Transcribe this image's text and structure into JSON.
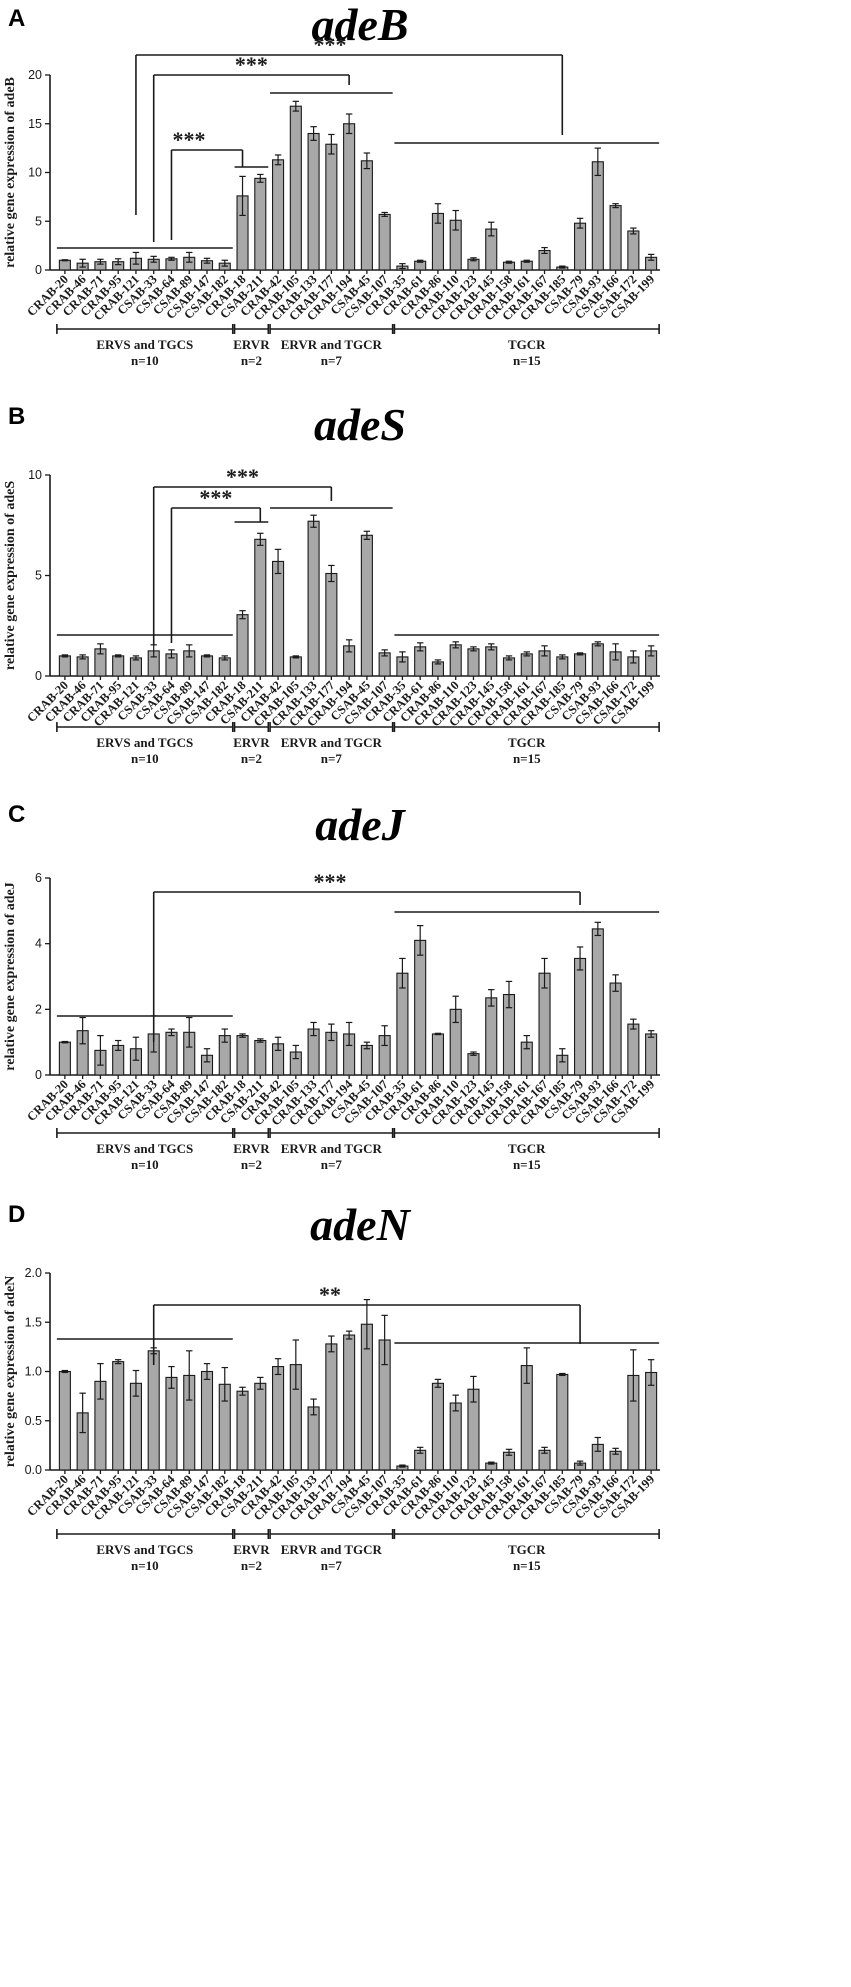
{
  "chart_data": [
    {
      "type": "bar",
      "panel_letter": "A",
      "title": "adeB",
      "ylabel": "relative gene expression of adeB",
      "ylim": [
        0,
        20
      ],
      "yticks": [
        "0",
        "5",
        "10",
        "15",
        "20"
      ],
      "categories": [
        "CRAB-20",
        "CRAB-46",
        "CRAB-71",
        "CRAB-95",
        "CRAB-121",
        "CSAB-33",
        "CSAB-64",
        "CSAB-89",
        "CSAB-147",
        "CSAB-182",
        "CRAB-18",
        "CSAB-211",
        "CRAB-42",
        "CRAB-105",
        "CRAB-133",
        "CRAB-177",
        "CRAB-194",
        "CSAB-45",
        "CSAB-107",
        "CRAB-35",
        "CRAB-61",
        "CRAB-86",
        "CRAB-110",
        "CRAB-123",
        "CRAB-145",
        "CRAB-158",
        "CRAB-161",
        "CRAB-167",
        "CRAB-185",
        "CSAB-79",
        "CSAB-93",
        "CSAB-166",
        "CSAB-172",
        "CSAB-199"
      ],
      "values": [
        1.0,
        0.7,
        0.85,
        0.85,
        1.2,
        1.1,
        1.15,
        1.3,
        0.95,
        0.7,
        7.6,
        9.4,
        11.3,
        16.8,
        14.0,
        12.9,
        15.0,
        11.2,
        5.7,
        0.4,
        0.9,
        5.8,
        5.1,
        1.1,
        4.2,
        0.8,
        0.9,
        2.0,
        0.3,
        4.8,
        11.1,
        6.6,
        4.0,
        1.3
      ],
      "errors": [
        0.05,
        0.4,
        0.25,
        0.3,
        0.6,
        0.3,
        0.15,
        0.5,
        0.25,
        0.3,
        2.0,
        0.4,
        0.5,
        0.5,
        0.7,
        1.0,
        1.0,
        0.8,
        0.2,
        0.25,
        0.1,
        1.0,
        1.0,
        0.15,
        0.7,
        0.1,
        0.1,
        0.3,
        0.1,
        0.5,
        1.4,
        0.2,
        0.3,
        0.3
      ],
      "significance": [
        "***",
        "***",
        "***"
      ],
      "groups": [
        {
          "label": "ERVS and TGCS",
          "n": "n=10"
        },
        {
          "label": "ERVR",
          "n": "n=2"
        },
        {
          "label": "ERVR and TGCR",
          "n": "n=7"
        },
        {
          "label": "TGCR",
          "n": "n=15"
        }
      ]
    },
    {
      "type": "bar",
      "panel_letter": "B",
      "title": "adeS",
      "ylabel": "relative gene expression of adeS",
      "ylim": [
        0,
        10
      ],
      "yticks": [
        "0",
        "5",
        "10"
      ],
      "categories": [
        "CRAB-20",
        "CRAB-46",
        "CRAB-71",
        "CRAB-95",
        "CRAB-121",
        "CSAB-33",
        "CSAB-64",
        "CSAB-89",
        "CSAB-147",
        "CSAB-182",
        "CRAB-18",
        "CSAB-211",
        "CRAB-42",
        "CRAB-105",
        "CRAB-133",
        "CRAB-177",
        "CRAB-194",
        "CSAB-45",
        "CSAB-107",
        "CRAB-35",
        "CRAB-61",
        "CRAB-86",
        "CRAB-110",
        "CRAB-123",
        "CRAB-145",
        "CRAB-158",
        "CRAB-161",
        "CRAB-167",
        "CRAB-185",
        "CSAB-79",
        "CSAB-93",
        "CSAB-166",
        "CSAB-172",
        "CSAB-199"
      ],
      "values": [
        1.0,
        0.95,
        1.35,
        1.0,
        0.9,
        1.25,
        1.1,
        1.25,
        1.0,
        0.9,
        3.05,
        6.8,
        5.7,
        0.95,
        7.7,
        5.1,
        1.5,
        7.0,
        1.15,
        0.95,
        1.45,
        0.7,
        1.55,
        1.35,
        1.45,
        0.9,
        1.1,
        1.25,
        0.95,
        1.1,
        1.6,
        1.2,
        0.95,
        1.25
      ],
      "errors": [
        0.05,
        0.1,
        0.25,
        0.05,
        0.1,
        0.3,
        0.2,
        0.3,
        0.05,
        0.1,
        0.2,
        0.3,
        0.6,
        0.05,
        0.3,
        0.4,
        0.3,
        0.2,
        0.15,
        0.25,
        0.2,
        0.1,
        0.15,
        0.1,
        0.15,
        0.1,
        0.1,
        0.25,
        0.1,
        0.05,
        0.1,
        0.4,
        0.3,
        0.25
      ],
      "significance": [
        "***",
        "***"
      ],
      "groups": [
        {
          "label": "ERVS and TGCS",
          "n": "n=10"
        },
        {
          "label": "ERVR",
          "n": "n=2"
        },
        {
          "label": "ERVR and TGCR",
          "n": "n=7"
        },
        {
          "label": "TGCR",
          "n": "n=15"
        }
      ]
    },
    {
      "type": "bar",
      "panel_letter": "C",
      "title": "adeJ",
      "ylabel": "relative gene expression of adeJ",
      "ylim": [
        0,
        6
      ],
      "yticks": [
        "0",
        "2",
        "4",
        "6"
      ],
      "categories": [
        "CRAB-20",
        "CRAB-46",
        "CRAB-71",
        "CRAB-95",
        "CRAB-121",
        "CSAB-33",
        "CSAB-64",
        "CSAB-89",
        "CSAB-147",
        "CSAB-182",
        "CRAB-18",
        "CSAB-211",
        "CRAB-42",
        "CRAB-105",
        "CRAB-133",
        "CRAB-177",
        "CRAB-194",
        "CSAB-45",
        "CSAB-107",
        "CRAB-35",
        "CRAB-61",
        "CRAB-86",
        "CRAB-110",
        "CRAB-123",
        "CRAB-145",
        "CRAB-158",
        "CRAB-161",
        "CRAB-167",
        "CRAB-185",
        "CSAB-79",
        "CSAB-93",
        "CSAB-166",
        "CSAB-172",
        "CSAB-199"
      ],
      "values": [
        1.0,
        1.35,
        0.75,
        0.9,
        0.8,
        1.25,
        1.3,
        1.3,
        0.6,
        1.2,
        1.2,
        1.05,
        0.95,
        0.7,
        1.4,
        1.3,
        1.25,
        0.9,
        1.2,
        3.1,
        4.1,
        1.25,
        2.0,
        0.65,
        2.35,
        2.45,
        1.0,
        3.1,
        0.6,
        3.55,
        4.45,
        2.8,
        1.55,
        1.25
      ],
      "errors": [
        0.02,
        0.4,
        0.45,
        0.15,
        0.35,
        0.55,
        0.1,
        0.45,
        0.2,
        0.2,
        0.05,
        0.05,
        0.2,
        0.2,
        0.2,
        0.25,
        0.35,
        0.1,
        0.3,
        0.45,
        0.45,
        0.02,
        0.4,
        0.05,
        0.25,
        0.4,
        0.2,
        0.45,
        0.2,
        0.35,
        0.2,
        0.25,
        0.15,
        0.1
      ],
      "significance": [
        "***"
      ],
      "groups": [
        {
          "label": "ERVS and TGCS",
          "n": "n=10"
        },
        {
          "label": "ERVR",
          "n": "n=2"
        },
        {
          "label": "ERVR and TGCR",
          "n": "n=7"
        },
        {
          "label": "TGCR",
          "n": "n=15"
        }
      ]
    },
    {
      "type": "bar",
      "panel_letter": "D",
      "title": "adeN",
      "ylabel": "relative gene expression of adeN",
      "ylim": [
        0,
        2.0
      ],
      "yticks": [
        "0.0",
        "0.5",
        "1.0",
        "1.5",
        "2.0"
      ],
      "categories": [
        "CRAB-20",
        "CRAB-46",
        "CRAB-71",
        "CRAB-95",
        "CRAB-121",
        "CSAB-33",
        "CSAB-64",
        "CSAB-89",
        "CSAB-147",
        "CSAB-182",
        "CRAB-18",
        "CSAB-211",
        "CRAB-42",
        "CRAB-105",
        "CRAB-133",
        "CRAB-177",
        "CRAB-194",
        "CSAB-45",
        "CSAB-107",
        "CRAB-35",
        "CRAB-61",
        "CRAB-86",
        "CRAB-110",
        "CRAB-123",
        "CRAB-145",
        "CRAB-158",
        "CRAB-161",
        "CRAB-167",
        "CRAB-185",
        "CSAB-79",
        "CSAB-93",
        "CSAB-166",
        "CSAB-172",
        "CSAB-199"
      ],
      "values": [
        1.0,
        0.58,
        0.9,
        1.1,
        0.88,
        1.21,
        0.94,
        0.96,
        1.0,
        0.87,
        0.8,
        0.88,
        1.05,
        1.07,
        0.64,
        1.28,
        1.37,
        1.48,
        1.32,
        0.04,
        0.2,
        0.88,
        0.68,
        0.82,
        0.07,
        0.18,
        1.06,
        0.2,
        0.97,
        0.07,
        0.26,
        0.19,
        0.96,
        0.99
      ],
      "errors": [
        0.01,
        0.2,
        0.18,
        0.02,
        0.13,
        0.03,
        0.11,
        0.25,
        0.08,
        0.17,
        0.04,
        0.06,
        0.08,
        0.25,
        0.08,
        0.08,
        0.04,
        0.25,
        0.25,
        0.01,
        0.03,
        0.04,
        0.08,
        0.13,
        0.01,
        0.03,
        0.18,
        0.03,
        0.01,
        0.02,
        0.07,
        0.03,
        0.26,
        0.13
      ],
      "significance": [
        "**"
      ],
      "groups": [
        {
          "label": "ERVS and TGCS",
          "n": "n=10"
        },
        {
          "label": "ERVR",
          "n": "n=2"
        },
        {
          "label": "ERVR and TGCR",
          "n": "n=7"
        },
        {
          "label": "TGCR",
          "n": "n=15"
        }
      ]
    }
  ]
}
